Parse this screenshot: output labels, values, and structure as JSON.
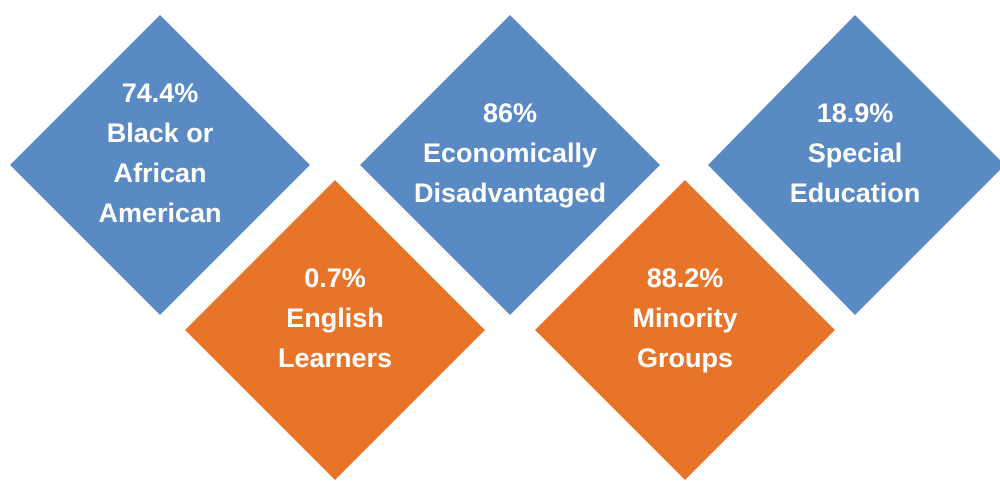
{
  "items": [
    {
      "stat": "74.4%",
      "lines": [
        "Black or",
        "African",
        "American"
      ]
    },
    {
      "stat": "0.7%",
      "lines": [
        "English",
        "Learners"
      ]
    },
    {
      "stat": "86%",
      "lines": [
        "Economically",
        "Disadvantaged"
      ]
    },
    {
      "stat": "88.2%",
      "lines": [
        "Minority",
        "Groups"
      ]
    },
    {
      "stat": "18.9%",
      "lines": [
        "Special",
        "Education"
      ]
    }
  ]
}
